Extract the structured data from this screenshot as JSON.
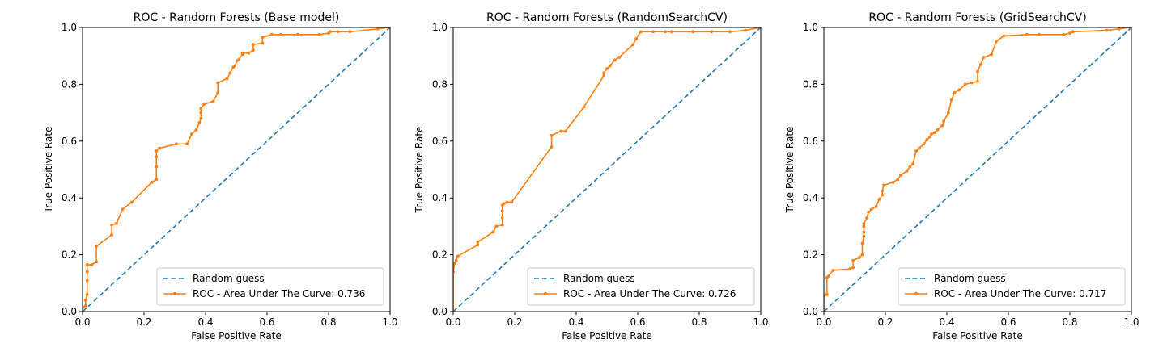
{
  "chart_data": [
    {
      "type": "line",
      "title": "ROC - Random Forests (Base model)",
      "xlabel": "False Positive Rate",
      "ylabel": "True Positive Rate",
      "xlim": [
        0,
        1
      ],
      "ylim": [
        0,
        1
      ],
      "xticks": [
        "0.0",
        "0.2",
        "0.4",
        "0.6",
        "0.8",
        "1.0"
      ],
      "yticks": [
        "0.0",
        "0.2",
        "0.4",
        "0.6",
        "0.8",
        "1.0"
      ],
      "grid": false,
      "legend_position": "lower-right",
      "colors": {
        "random": "#1f77b4",
        "roc": "#ff7f0e"
      },
      "series": [
        {
          "name": "Random guess",
          "style": "dashed",
          "x": [
            0,
            1
          ],
          "y": [
            0,
            1
          ]
        },
        {
          "name": "ROC - Area Under The Curve: 0.736",
          "style": "solid-marker",
          "x": [
            0,
            0,
            0.01,
            0.01,
            0.015,
            0.015,
            0.015,
            0.015,
            0.015,
            0.015,
            0.03,
            0.045,
            0.045,
            0.095,
            0.095,
            0.11,
            0.13,
            0.16,
            0.225,
            0.24,
            0.24,
            0.24,
            0.24,
            0.25,
            0.305,
            0.34,
            0.355,
            0.37,
            0.38,
            0.385,
            0.385,
            0.385,
            0.395,
            0.425,
            0.44,
            0.44,
            0.47,
            0.48,
            0.49,
            0.495,
            0.505,
            0.52,
            0.52,
            0.54,
            0.555,
            0.555,
            0.585,
            0.585,
            0.615,
            0.645,
            0.7,
            0.77,
            0.8,
            0.805,
            0.83,
            0.87,
            0.96,
            1
          ],
          "y": [
            0,
            0.015,
            0.02,
            0.04,
            0.06,
            0.11,
            0.14,
            0.165,
            0.165,
            0.165,
            0.165,
            0.175,
            0.23,
            0.27,
            0.305,
            0.31,
            0.36,
            0.385,
            0.455,
            0.465,
            0.51,
            0.545,
            0.565,
            0.575,
            0.59,
            0.59,
            0.625,
            0.64,
            0.665,
            0.68,
            0.7,
            0.715,
            0.73,
            0.74,
            0.77,
            0.805,
            0.82,
            0.84,
            0.86,
            0.865,
            0.885,
            0.905,
            0.91,
            0.91,
            0.92,
            0.94,
            0.945,
            0.965,
            0.975,
            0.975,
            0.975,
            0.975,
            0.98,
            0.985,
            0.985,
            0.985,
            0.995,
            1
          ]
        }
      ]
    },
    {
      "type": "line",
      "title": "ROC - Random Forests (RandomSearchCV)",
      "xlabel": "False Positive Rate",
      "ylabel": "True Positive Rate",
      "xlim": [
        0,
        1
      ],
      "ylim": [
        0,
        1
      ],
      "xticks": [
        "0.0",
        "0.2",
        "0.4",
        "0.6",
        "0.8",
        "1.0"
      ],
      "yticks": [
        "0.0",
        "0.2",
        "0.4",
        "0.6",
        "0.8",
        "1.0"
      ],
      "grid": false,
      "legend_position": "lower-right",
      "colors": {
        "random": "#1f77b4",
        "roc": "#ff7f0e"
      },
      "series": [
        {
          "name": "Random guess",
          "style": "dashed",
          "x": [
            0,
            1
          ],
          "y": [
            0,
            1
          ]
        },
        {
          "name": "ROC - Area Under The Curve: 0.726",
          "style": "solid-marker",
          "x": [
            0,
            0,
            0.005,
            0.01,
            0.015,
            0.08,
            0.08,
            0.13,
            0.14,
            0.16,
            0.16,
            0.16,
            0.16,
            0.165,
            0.175,
            0.19,
            0.32,
            0.32,
            0.35,
            0.365,
            0.425,
            0.49,
            0.49,
            0.5,
            0.51,
            0.525,
            0.54,
            0.585,
            0.595,
            0.61,
            0.65,
            0.69,
            0.71,
            0.78,
            0.84,
            0.9,
            0.95,
            1
          ],
          "y": [
            0,
            0.14,
            0.17,
            0.18,
            0.195,
            0.235,
            0.245,
            0.28,
            0.3,
            0.305,
            0.33,
            0.355,
            0.375,
            0.38,
            0.385,
            0.385,
            0.58,
            0.62,
            0.635,
            0.635,
            0.72,
            0.83,
            0.84,
            0.855,
            0.865,
            0.885,
            0.895,
            0.94,
            0.96,
            0.985,
            0.985,
            0.985,
            0.985,
            0.985,
            0.985,
            0.985,
            0.99,
            1
          ]
        }
      ]
    },
    {
      "type": "line",
      "title": "ROC - Random Forests (GridSearchCV)",
      "xlabel": "False Positive Rate",
      "ylabel": "True Positive Rate",
      "xlim": [
        0,
        1
      ],
      "ylim": [
        0,
        1
      ],
      "xticks": [
        "0.0",
        "0.2",
        "0.4",
        "0.6",
        "0.8",
        "1.0"
      ],
      "yticks": [
        "0.0",
        "0.2",
        "0.4",
        "0.6",
        "0.8",
        "1.0"
      ],
      "grid": false,
      "legend_position": "lower-right",
      "colors": {
        "random": "#1f77b4",
        "roc": "#ff7f0e"
      },
      "series": [
        {
          "name": "Random guess",
          "style": "dashed",
          "x": [
            0,
            1
          ],
          "y": [
            0,
            1
          ]
        },
        {
          "name": "ROC - Area Under The Curve: 0.717",
          "style": "solid-marker",
          "x": [
            0,
            0,
            0.01,
            0.01,
            0.015,
            0.03,
            0.085,
            0.095,
            0.095,
            0.115,
            0.125,
            0.125,
            0.13,
            0.13,
            0.13,
            0.13,
            0.14,
            0.145,
            0.155,
            0.17,
            0.18,
            0.19,
            0.19,
            0.195,
            0.225,
            0.24,
            0.25,
            0.27,
            0.28,
            0.29,
            0.3,
            0.31,
            0.325,
            0.335,
            0.345,
            0.35,
            0.36,
            0.37,
            0.385,
            0.39,
            0.405,
            0.415,
            0.425,
            0.44,
            0.46,
            0.48,
            0.5,
            0.5,
            0.51,
            0.52,
            0.545,
            0.56,
            0.585,
            0.66,
            0.7,
            0.78,
            0.8,
            0.81,
            0.92,
            0.96,
            1
          ],
          "y": [
            0,
            0.055,
            0.06,
            0.12,
            0.125,
            0.145,
            0.15,
            0.155,
            0.18,
            0.19,
            0.2,
            0.24,
            0.265,
            0.28,
            0.3,
            0.31,
            0.33,
            0.35,
            0.36,
            0.37,
            0.395,
            0.41,
            0.425,
            0.445,
            0.455,
            0.465,
            0.48,
            0.495,
            0.51,
            0.52,
            0.565,
            0.575,
            0.59,
            0.605,
            0.615,
            0.625,
            0.63,
            0.64,
            0.655,
            0.67,
            0.7,
            0.745,
            0.77,
            0.78,
            0.8,
            0.805,
            0.81,
            0.845,
            0.87,
            0.895,
            0.905,
            0.95,
            0.97,
            0.975,
            0.975,
            0.975,
            0.98,
            0.985,
            0.99,
            0.995,
            1
          ]
        }
      ]
    }
  ]
}
